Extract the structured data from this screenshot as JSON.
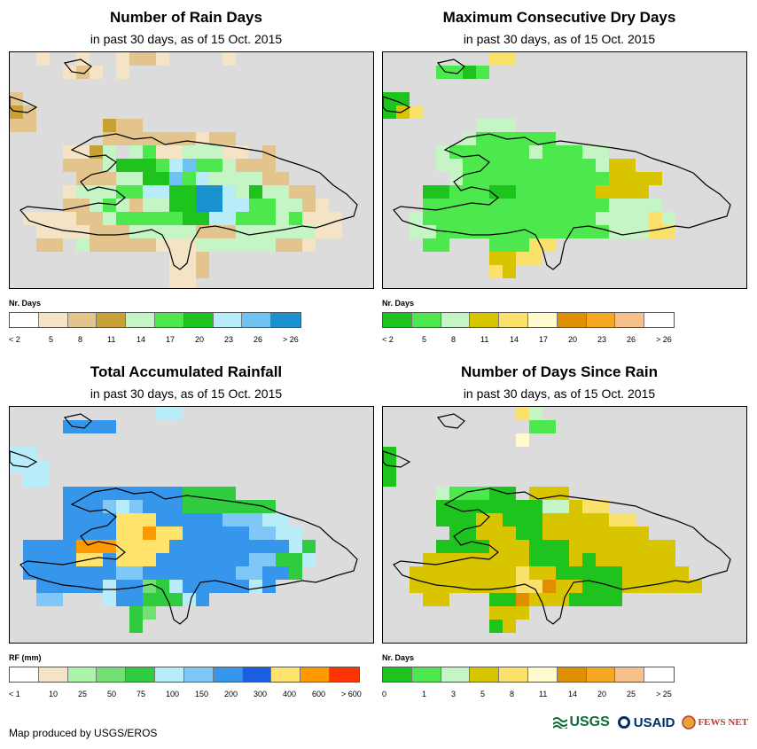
{
  "panels": [
    {
      "title": "Number of Rain Days",
      "subtitle": "in past 30 days, as of 15 Oct. 2015",
      "legend_title": "Nr. Days",
      "legend_colors": [
        "#ffffff",
        "#f5e3c6",
        "#e2c48c",
        "#c9a035",
        "#c5f5c5",
        "#4de84d",
        "#1ec31e",
        "#b9ecf9",
        "#6ec3f4",
        "#1a92d0"
      ],
      "legend_labels": [
        "< 2",
        "5",
        "8",
        "11",
        "14",
        "17",
        "20",
        "23",
        "26",
        "> 26"
      ],
      "grid_rows": [
        "..0..0..abb0....0..............",
        "....aba.a......................",
        "...............................",
        "b..............................",
        "cb.............................",
        "bb.....cbb.....................",
        ".......bbbbbbbabb..............",
        "....aacd.dfaaeeeaa.b...........",
        "....bbbdgggfhiffebbb...........",
        ".....bbbdeggifhdeddbb..........",
        "....aeeeffhhggjjhegdebb.........",
        "....bbefebeeggjjhhffeeba........",
        ".aaaabbefffffgghhfffefaaa.......",
        "..aaaabbbeeeeebbbeeeeeeaa.......",
        "..bb.ebbbbbaaaeeeeeebba.........",
        "............aab.................",
        "............aab.................",
        "............aa.................."
      ],
      "code_map": {
        "a": 1,
        "b": 2,
        "c": 3,
        "d": 4,
        "e": 4,
        "f": 5,
        "g": 6,
        "h": 7,
        "i": 8,
        "j": 9,
        "0": 1
      }
    },
    {
      "title": "Maximum Consecutive Dry Days",
      "subtitle": "in past 30 days, as of 15 Oct. 2015",
      "legend_title": "Nr. Days",
      "legend_colors": [
        "#1ec31e",
        "#4de84d",
        "#c5f5c5",
        "#d9c400",
        "#fae16b",
        "#fffbcf",
        "#e08f00",
        "#f5a623",
        "#f8c08a",
        "#ffffff"
      ],
      "legend_labels": [
        "< 2",
        "5",
        "8",
        "11",
        "14",
        "17",
        "20",
        "23",
        "26",
        "> 26"
      ],
      "grid_rows": [
        "........ee..............",
        "....bbab................",
        ".......................",
        "aa.....................",
        "ade....................",
        ".......ccc.............",
        "......cbbbbbb..........",
        "....cbbbbbbcbbbcc......",
        "....ccbbbbbbbbbbcdd....",
        ".....cbbbbbbbbbbbdddd..",
        "...aabbbaabbbbbbdddd....",
        "...bbbbbbbbbbbbbbcccc...",
        "..cbbbbbbbbbbbbbccccec..",
        "..ccbbbbbbbbbbbbbcccee..",
        "...bb...bbbee...........",
        "........ddee............",
        "........ed.............."
      ],
      "code_map": {
        "a": 0,
        "b": 1,
        "c": 2,
        "d": 3,
        "e": 4,
        "f": 5
      }
    },
    {
      "title": "Total Accumulated Rainfall",
      "subtitle": "in past 30 days, as of 15 Oct. 2015",
      "legend_title": "RF (mm)",
      "legend_colors": [
        "#ffffff",
        "#f5e3c6",
        "#aaf5aa",
        "#72e072",
        "#2ecc3e",
        "#b9ecf9",
        "#7fc7f7",
        "#3596ec",
        "#1a5fe0",
        "#ffe36b",
        "#ff9900",
        "#ff3300"
      ],
      "legend_labels": [
        "< 1",
        "10",
        "25",
        "50",
        "75",
        "100",
        "150",
        "200",
        "300",
        "400",
        "600",
        "> 600"
      ],
      "grid_rows": [
        "...........ff..........",
        "....hhhh...............",
        "...............",
        "ff.............",
        "fff............",
        ".ff............",
        "....hhhhhhhhheeee.......",
        "....hhhgfghhheeeeeee....",
        "....hhhhijjhhhhhgggff...",
        "....hhhhijkjihhhhhggff..",
        ".hhhhkkkjjjjhhhhhhhhhfe.",
        ".hhhhjjhjjjhhhhhhhggeef.",
        ".hhhhhhhgghhhhhhhgghhe..",
        "..hhhhhfhhcdfhhhhhfh....",
        "..gg...fhhdddfh.........",
        ".........dc.............",
        ".........d..............",
        "............................"
      ],
      "code_map": {
        "a": 1,
        "b": 2,
        "c": 3,
        "d": 4,
        "e": 4,
        "f": 5,
        "g": 6,
        "h": 7,
        "i": 9,
        "j": 9,
        "k": 10
      }
    },
    {
      "title": "Number of Days Since Rain",
      "subtitle": "in past 30 days, as of 15 Oct. 2015",
      "legend_title": "Nr. Days",
      "legend_colors": [
        "#1ec31e",
        "#4de84d",
        "#c5f5c5",
        "#d9c400",
        "#fae16b",
        "#fffbcf",
        "#e08f00",
        "#f5a623",
        "#f8c08a",
        "#ffffff"
      ],
      "legend_labels": [
        "0",
        "1",
        "3",
        "5",
        "8",
        "11",
        "14",
        "20",
        "25",
        "> 25"
      ],
      "grid_rows": [
        "..........ec.............",
        "...........bb..........",
        "..........f.............",
        "a.....................",
        "a.....................",
        "a.....................",
        "....cbbbaa.ddd.........",
        "....aaaaaaaaccdee.......",
        "....aaaddaaadddddee.....",
        ".....aadddaadddddddd....",
        "....aaaadddaaadddddddd..",
        "...ddddddddaaadadddddd..",
        "..ddddddddeddaaaaaddddd.",
        "..ddddddddeegddaaadddddd",
        "...dd...aagdddaaaa......",
        "........ddd.............",
        "........ad..............",
        "........................"
      ],
      "code_map": {
        "a": 0,
        "b": 1,
        "c": 2,
        "d": 3,
        "e": 4,
        "f": 5,
        "g": 6
      }
    }
  ],
  "footer": "Map produced by USGS/EROS",
  "logos": {
    "usgs": "USGS",
    "usaid": "USAID",
    "fews": "FEWS NET"
  }
}
